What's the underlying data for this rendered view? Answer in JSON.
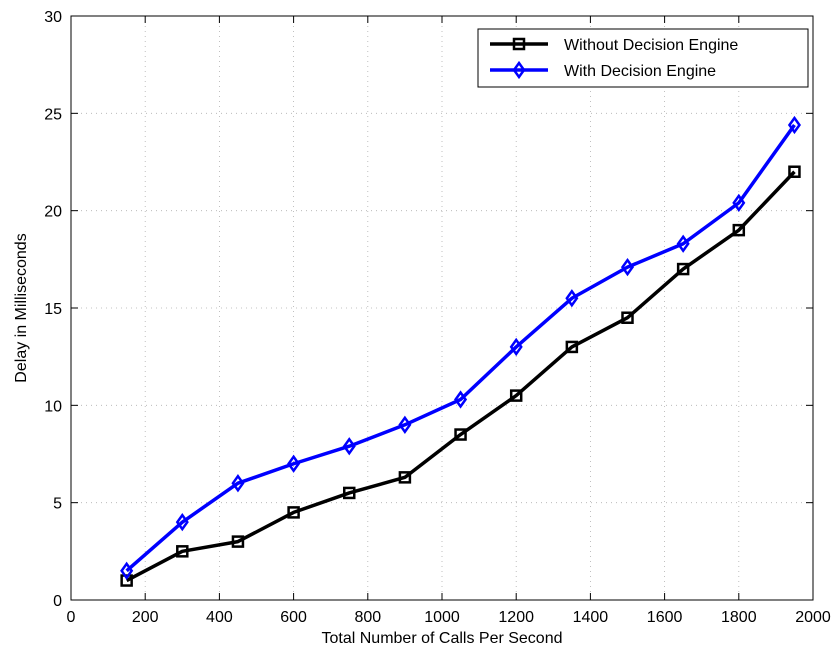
{
  "chart_data": {
    "type": "line",
    "title": "",
    "xlabel": "Total Number of Calls Per Second",
    "ylabel": "Delay in Milliseconds",
    "xlim": [
      0,
      2000
    ],
    "ylim": [
      0,
      30
    ],
    "x_ticks": [
      0,
      200,
      400,
      600,
      800,
      1000,
      1200,
      1400,
      1600,
      1800,
      2000
    ],
    "y_ticks": [
      0,
      5,
      10,
      15,
      20,
      25,
      30
    ],
    "grid": true,
    "legend_position": "top-right",
    "x": [
      150,
      300,
      450,
      600,
      750,
      900,
      1050,
      1200,
      1350,
      1500,
      1650,
      1800,
      1950
    ],
    "series": [
      {
        "name": "Without Decision Engine",
        "color": "#000000",
        "marker": "square",
        "values": [
          1.0,
          2.5,
          3.0,
          4.5,
          5.5,
          6.3,
          8.5,
          10.5,
          13.0,
          14.5,
          17.0,
          19.0,
          22.0
        ]
      },
      {
        "name": "With Decision Engine",
        "color": "#0000ff",
        "marker": "diamond",
        "values": [
          1.5,
          4.0,
          6.0,
          7.0,
          7.9,
          9.0,
          10.3,
          13.0,
          15.5,
          17.1,
          18.3,
          20.4,
          24.4
        ]
      }
    ]
  }
}
